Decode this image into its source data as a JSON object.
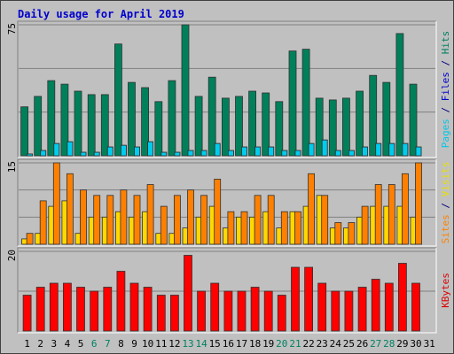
{
  "chart_data": {
    "type": "bar",
    "title": "Daily usage for April 2019",
    "categories": [
      "1",
      "2",
      "3",
      "4",
      "5",
      "6",
      "7",
      "8",
      "9",
      "10",
      "11",
      "12",
      "13",
      "14",
      "15",
      "16",
      "17",
      "18",
      "19",
      "20",
      "21",
      "22",
      "23",
      "24",
      "25",
      "26",
      "27",
      "28",
      "29",
      "30",
      "31"
    ],
    "weekend_days": [
      "6",
      "7",
      "13",
      "14",
      "20",
      "21",
      "27",
      "28"
    ],
    "panels": [
      {
        "name": "hits-files-pages",
        "ymax": 75,
        "ytick_label": "75",
        "side_labels": [
          {
            "text": "Pages",
            "color": "#00c8e8"
          },
          {
            "text": " / ",
            "color": "#000080"
          },
          {
            "text": "Files",
            "color": "#0000cc"
          },
          {
            "text": " / ",
            "color": "#000080"
          },
          {
            "text": "Hits",
            "color": "#008060"
          }
        ],
        "gridlines": [
          25,
          50,
          75
        ],
        "series": [
          {
            "name": "Hits",
            "color": "#00805a",
            "width": 8,
            "offset": -3,
            "values": [
              28,
              34,
              43,
              41,
              37,
              35,
              35,
              64,
              42,
              39,
              31,
              43,
              75,
              34,
              45,
              33,
              34,
              37,
              36,
              31,
              60,
              61,
              33,
              32,
              33,
              37,
              46,
              42,
              70,
              41,
              0
            ]
          },
          {
            "name": "Files",
            "color": "#0000cc",
            "width": 6,
            "offset": 3,
            "values": [
              1,
              3,
              7,
              8,
              2,
              2,
              5,
              6,
              5,
              8,
              2,
              2,
              3,
              3,
              7,
              3,
              5,
              5,
              5,
              3,
              3,
              7,
              9,
              3,
              3,
              5,
              7,
              7,
              7,
              5,
              0
            ]
          },
          {
            "name": "Pages",
            "color": "#00ccee",
            "width": 6,
            "offset": 3,
            "values": [
              1,
              3,
              7,
              8,
              2,
              2,
              5,
              6,
              5,
              8,
              2,
              2,
              3,
              3,
              7,
              3,
              5,
              5,
              5,
              3,
              3,
              7,
              9,
              3,
              3,
              5,
              7,
              7,
              7,
              5,
              0
            ]
          }
        ]
      },
      {
        "name": "visits-sites",
        "ymax": 15,
        "ytick_label": "15",
        "side_labels": [
          {
            "text": "Sites",
            "color": "#ff8000"
          },
          {
            "text": " / ",
            "color": "#000080"
          },
          {
            "text": "Visits",
            "color": "#e8e000"
          }
        ],
        "gridlines": [
          5,
          10,
          15
        ],
        "series": [
          {
            "name": "Visits",
            "color": "#ffd800",
            "width": 6,
            "offset": -3,
            "values": [
              1,
              2,
              7,
              8,
              2,
              5,
              5,
              6,
              5,
              6,
              2,
              2,
              3,
              5,
              7,
              3,
              5,
              5,
              6,
              3,
              6,
              7,
              9,
              3,
              3,
              5,
              7,
              7,
              7,
              5,
              0
            ]
          },
          {
            "name": "Sites",
            "color": "#ff8000",
            "width": 7,
            "offset": 3,
            "values": [
              2,
              8,
              15,
              13,
              10,
              9,
              9,
              10,
              9,
              11,
              7,
              9,
              10,
              9,
              12,
              6,
              6,
              9,
              9,
              6,
              6,
              13,
              9,
              4,
              4,
              7,
              11,
              11,
              13,
              15,
              0
            ]
          }
        ]
      },
      {
        "name": "kbytes",
        "ymax": 20,
        "ytick_label": "20",
        "side_labels": [
          {
            "text": "KBytes",
            "color": "#dd0000"
          }
        ],
        "gridlines": [
          10,
          20
        ],
        "series": [
          {
            "name": "KBytes",
            "color": "#ff0000",
            "width": 9,
            "offset": 0,
            "values": [
              9,
              11,
              12,
              12,
              11,
              10,
              11,
              15,
              12,
              11,
              9,
              9,
              19,
              10,
              12,
              10,
              10,
              11,
              10,
              9,
              16,
              16,
              12,
              10,
              10,
              11,
              13,
              12,
              17,
              12,
              0
            ]
          }
        ]
      }
    ]
  }
}
